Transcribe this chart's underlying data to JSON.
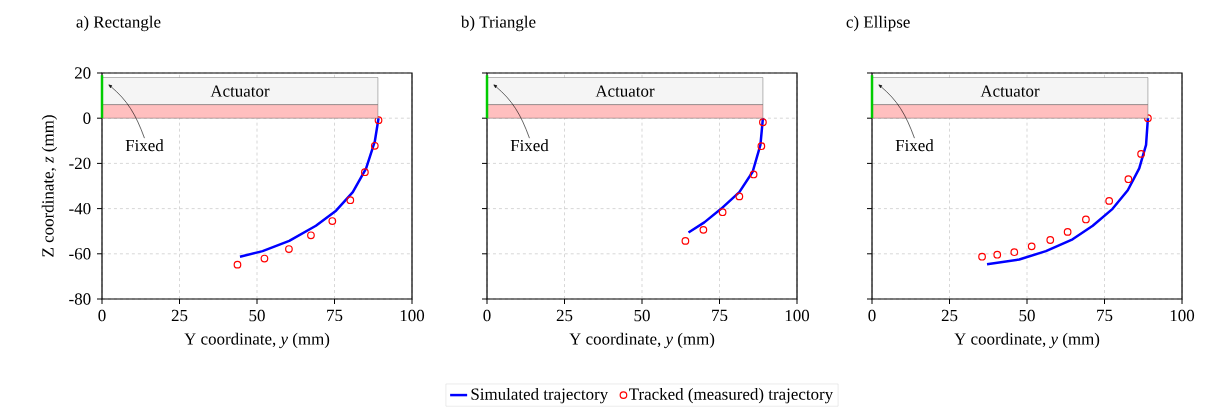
{
  "chart_data": [
    {
      "type": "line",
      "title": "a) Rectangle",
      "xlabel": "Y coordinate, *y* (mm)",
      "ylabel": "Z coordinate, *z* (mm)",
      "xlim": [
        0,
        100
      ],
      "ylim": [
        -80,
        20
      ],
      "xticks": [
        0,
        25,
        50,
        75,
        100
      ],
      "yticks": [
        -80,
        -60,
        -40,
        -20,
        0,
        20
      ],
      "grid": true,
      "annotations": [
        "Actuator",
        "Fixed"
      ],
      "series": [
        {
          "type": "line",
          "color": "#0000ff",
          "line_style": "solid",
          "marker": "none",
          "x": [
            89.2,
            88.0,
            85.2,
            80.9,
            75.5,
            69.0,
            60.4,
            51.8,
            44.5
          ],
          "values": [
            0,
            -10.3,
            -22.2,
            -32.7,
            -40.9,
            -47.6,
            -54.3,
            -58.8,
            -61.3
          ]
        },
        {
          "type": "scatter",
          "color": "#ff0000",
          "marker": "circle",
          "x": [
            89.2,
            88.0,
            84.8,
            80.1,
            74.3,
            67.4,
            60.3,
            52.4,
            43.7
          ],
          "values": [
            -0.9,
            -12.2,
            -23.9,
            -36.3,
            -45.5,
            -51.8,
            -57.9,
            -62.1,
            -64.8
          ]
        }
      ]
    },
    {
      "type": "line",
      "title": "b) Triangle",
      "xlabel": "Y coordinate, *y* (mm)",
      "xlim": [
        0,
        100
      ],
      "ylim": [
        -80,
        20
      ],
      "xticks": [
        0,
        25,
        50,
        75,
        100
      ],
      "yticks": [
        -80,
        -60,
        -40,
        -20,
        0,
        20
      ],
      "grid": true,
      "tick_labels": "x",
      "legend": "bottom",
      "annotations": [
        "Actuator",
        "Fixed"
      ],
      "series": [
        {
          "type": "line",
          "name": "Simulated trajectory",
          "color": "#0000ff",
          "line_style": "solid",
          "marker": "none",
          "x": [
            89.0,
            88.2,
            85.7,
            81.4,
            75.5,
            70.1,
            65.0
          ],
          "values": [
            0,
            -11.8,
            -23.7,
            -32.7,
            -40.1,
            -46.1,
            -50.6
          ]
        },
        {
          "type": "scatter",
          "name": "Tracked (measured) trajectory",
          "color": "#ff0000",
          "marker": "circle",
          "x": [
            89.0,
            88.5,
            86.0,
            81.4,
            76.0,
            69.8,
            64.0
          ],
          "values": [
            -1.8,
            -12.4,
            -24.9,
            -34.6,
            -41.6,
            -49.4,
            -54.3
          ]
        }
      ]
    },
    {
      "type": "line",
      "title": "c) Ellipse",
      "xlabel": "Y coordinate, *y* (mm)",
      "xlim": [
        0,
        100
      ],
      "ylim": [
        -80,
        20
      ],
      "xticks": [
        0,
        25,
        50,
        75,
        100
      ],
      "yticks": [
        -80,
        -60,
        -40,
        -20,
        0,
        20
      ],
      "grid": true,
      "tick_labels": "x",
      "annotations": [
        "Actuator",
        "Fixed"
      ],
      "series": [
        {
          "type": "line",
          "color": "#0000ff",
          "line_style": "solid",
          "marker": "none",
          "x": [
            89.0,
            88.4,
            86.2,
            82.5,
            77.6,
            71.2,
            64.7,
            56.1,
            47.5,
            37.1
          ],
          "values": [
            0,
            -11.8,
            -22.2,
            -31.9,
            -40.1,
            -47.6,
            -53.6,
            -58.8,
            -62.5,
            -64.6
          ]
        },
        {
          "type": "scatter",
          "color": "#ff0000",
          "marker": "circle",
          "x": [
            89.0,
            86.8,
            82.7,
            76.5,
            69.0,
            63.1,
            57.5,
            51.5,
            45.9,
            40.4,
            35.5
          ],
          "values": [
            0,
            -15.8,
            -27.0,
            -36.6,
            -44.8,
            -50.3,
            -53.9,
            -56.7,
            -59.3,
            -60.4,
            -61.3
          ]
        }
      ]
    }
  ]
}
